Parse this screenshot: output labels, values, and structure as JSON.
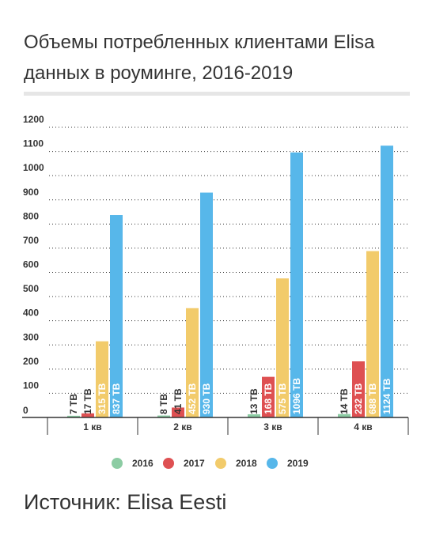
{
  "title": "Объемы потребленных клиентами Elisa данных в роуминге, 2016-2019",
  "source": "Источник: Elisa Eesti",
  "colors": {
    "2016": "#8ccca3",
    "2017": "#de5052",
    "2018": "#f2cb6b",
    "2019": "#57b7ea",
    "text": "#333333",
    "grid": "#333333"
  },
  "chart_data": {
    "type": "bar",
    "title": "Объемы потребленных клиентами Elisa данных в роуминге, 2016-2019",
    "categories": [
      "1 кв",
      "2 кв",
      "3 кв",
      "4 кв"
    ],
    "series": [
      {
        "name": "2016",
        "values": [
          7,
          8,
          13,
          14
        ],
        "labels": [
          "7 TB",
          "8 TB",
          "13 TB",
          "14 TB"
        ]
      },
      {
        "name": "2017",
        "values": [
          17,
          41,
          168,
          232
        ],
        "labels": [
          "17 TB",
          "41 TB",
          "168 TB",
          "232 TB"
        ]
      },
      {
        "name": "2018",
        "values": [
          315,
          452,
          575,
          688
        ],
        "labels": [
          "315 TB",
          "452 TB",
          "575 TB",
          "688 TB"
        ]
      },
      {
        "name": "2019",
        "values": [
          837,
          930,
          1096,
          1124
        ],
        "labels": [
          "837 TB",
          "930 TB",
          "1096 TB",
          "1124 TB"
        ]
      }
    ],
    "yticks": [
      0,
      100,
      200,
      300,
      400,
      500,
      600,
      700,
      800,
      900,
      1000,
      1100,
      1200
    ],
    "ylim": [
      0,
      1200
    ],
    "grid": true,
    "legend": "bottom"
  }
}
